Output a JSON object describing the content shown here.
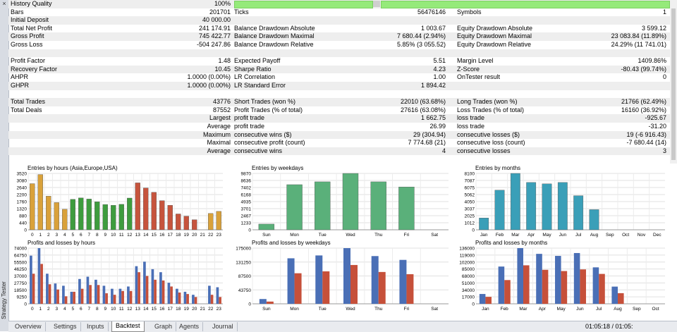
{
  "sidebar": {
    "title": "Strategy Tester",
    "close": "×"
  },
  "report": {
    "history_quality_label": "History Quality",
    "history_quality_value": "100%",
    "rows": [
      [
        "Bars",
        "201701",
        "Ticks",
        "56476146",
        "Symbols",
        "1"
      ],
      [
        "Initial Deposit",
        "40 000.00",
        "",
        "",
        "",
        ""
      ],
      [
        "Total Net Profit",
        "241 174.91",
        "Balance Drawdown Absolute",
        "1 003.67",
        "Equity Drawdown Absolute",
        "3 599.12"
      ],
      [
        "Gross Profit",
        "745 422.77",
        "Balance Drawdown Maximal",
        "7 680.44 (2.94%)",
        "Equity Drawdown Maximal",
        "23 083.84 (11.89%)"
      ],
      [
        "Gross Loss",
        "-504 247.86",
        "Balance Drawdown Relative",
        "5.85% (3 055.52)",
        "Equity Drawdown Relative",
        "24.29% (11 741.01)"
      ],
      [
        "",
        "",
        "",
        "",
        "",
        ""
      ],
      [
        "Profit Factor",
        "1.48",
        "Expected Payoff",
        "5.51",
        "Margin Level",
        "1409.86%"
      ],
      [
        "Recovery Factor",
        "10.45",
        "Sharpe Ratio",
        "4.23",
        "Z-Score",
        "-80.43 (99.74%)"
      ],
      [
        "AHPR",
        "1.0000 (0.00%)",
        "LR Correlation",
        "1.00",
        "OnTester result",
        "0"
      ],
      [
        "GHPR",
        "1.0000 (0.00%)",
        "LR Standard Error",
        "1 894.42",
        "",
        ""
      ],
      [
        "",
        "",
        "",
        "",
        "",
        ""
      ],
      [
        "Total Trades",
        "43776",
        "Short Trades (won %)",
        "22010 (63.68%)",
        "Long Trades (won %)",
        "21766 (62.49%)"
      ],
      [
        "Total Deals",
        "87552",
        "Profit Trades (% of total)",
        "27616 (63.08%)",
        "Loss Trades (% of total)",
        "16160 (36.92%)"
      ],
      [
        "",
        "Largest",
        "profit trade",
        "1 662.75",
        "loss trade",
        "-925.67"
      ],
      [
        "",
        "Average",
        "profit trade",
        "26.99",
        "loss trade",
        "-31.20"
      ],
      [
        "",
        "Maximum",
        "consecutive wins ($)",
        "29 (304.94)",
        "consecutive losses ($)",
        "19 (-6 916.43)"
      ],
      [
        "",
        "Maximal",
        "consecutive profit (count)",
        "7 774.68 (21)",
        "consecutive loss (count)",
        "-7 680.44 (14)"
      ],
      [
        "",
        "Average",
        "consecutive wins",
        "4",
        "consecutive losses",
        "3"
      ],
      [
        "",
        "",
        "",
        "",
        "",
        ""
      ]
    ]
  },
  "charts": {
    "entries_hours": {
      "title": "Entries by hours (Asia,Europe,USA)",
      "ylabels": [
        "3520",
        "3080",
        "2640",
        "2200",
        "1760",
        "1320",
        "880",
        "440",
        "0"
      ],
      "categories": [
        "0",
        "1",
        "2",
        "3",
        "4",
        "5",
        "6",
        "7",
        "8",
        "9",
        "10",
        "11",
        "12",
        "13",
        "14",
        "15",
        "16",
        "17",
        "18",
        "19",
        "20",
        "21",
        "22",
        "23"
      ],
      "values": [
        2880,
        3450,
        2100,
        1700,
        1280,
        1900,
        1990,
        1920,
        1750,
        1580,
        1530,
        1590,
        1980,
        2930,
        2610,
        2340,
        1820,
        1530,
        990,
        850,
        630,
        0,
        1020,
        1150
      ]
    },
    "entries_weekdays": {
      "title": "Entries by weekdays",
      "ylabels": [
        "9870",
        "8636",
        "7402",
        "6168",
        "4935",
        "3701",
        "2467",
        "1233",
        "0"
      ],
      "categories": [
        "Sun",
        "Mon",
        "Tue",
        "Wed",
        "Thu",
        "Fri",
        "Sat"
      ],
      "values": [
        1000,
        7900,
        8400,
        9870,
        8400,
        7500,
        0
      ]
    },
    "entries_months": {
      "title": "Entries by months",
      "ylabels": [
        "8100",
        "7087",
        "6075",
        "5062",
        "4050",
        "3037",
        "2025",
        "1012",
        "0"
      ],
      "categories": [
        "Jan",
        "Feb",
        "Mar",
        "Apr",
        "May",
        "Jun",
        "Jul",
        "Aug",
        "Sep",
        "Oct",
        "Nov",
        "Dec"
      ],
      "values": [
        1700,
        5700,
        8100,
        6800,
        6600,
        6800,
        4900,
        2900,
        0,
        0,
        0,
        0
      ]
    },
    "pl_hours": {
      "title": "Profits and losses by hours",
      "ylabels": [
        "74000",
        "64750",
        "55500",
        "46250",
        "37000",
        "27750",
        "18500",
        "9250",
        "0"
      ],
      "categories": [
        "0",
        "1",
        "2",
        "3",
        "4",
        "5",
        "6",
        "7",
        "8",
        "9",
        "10",
        "11",
        "12",
        "13",
        "14",
        "15",
        "16",
        "17",
        "18",
        "19",
        "20",
        "21",
        "22",
        "23"
      ],
      "profits": [
        64000,
        74000,
        40000,
        27000,
        24000,
        16000,
        33000,
        36000,
        32000,
        24000,
        20000,
        20000,
        23000,
        50000,
        56000,
        46000,
        42000,
        28000,
        20000,
        16000,
        12000,
        0,
        24000,
        22000
      ],
      "losses": [
        40000,
        53000,
        26000,
        19000,
        10000,
        16000,
        20000,
        25000,
        25000,
        14000,
        12000,
        17000,
        17000,
        42000,
        37000,
        32000,
        31000,
        23000,
        15000,
        13000,
        9000,
        0,
        12000,
        9000
      ]
    },
    "pl_weekdays": {
      "title": "Profits and losses by weekdays",
      "ylabels": [
        "175000",
        "131250",
        "87500",
        "43750",
        "0"
      ],
      "categories": [
        "Sun",
        "Mon",
        "Tue",
        "Wed",
        "Thu",
        "Fri",
        "Sat"
      ],
      "profits": [
        15000,
        143000,
        152000,
        175000,
        150000,
        138000,
        0
      ],
      "losses": [
        7000,
        96000,
        102000,
        122000,
        100000,
        93000,
        0
      ]
    },
    "pl_months": {
      "title": "Profits and losses by months",
      "ylabels": [
        "136000",
        "119000",
        "102000",
        "85000",
        "68000",
        "51000",
        "34000",
        "17000",
        "0"
      ],
      "categories": [
        "Jan",
        "Feb",
        "Mar",
        "Apr",
        "May",
        "Jun",
        "Jul",
        "Aug",
        "Sep",
        "Oct"
      ],
      "profits": [
        24000,
        91000,
        136000,
        122000,
        117000,
        124000,
        89000,
        42000,
        0,
        0
      ],
      "losses": [
        17000,
        58000,
        94000,
        83000,
        80000,
        84000,
        73000,
        26000,
        0,
        0
      ]
    }
  },
  "colors": {
    "asia": "#d9a13a",
    "europe": "#3e9c3e",
    "usa": "#c6543d",
    "weekday": "#5ab07a",
    "month": "#3a9fb8",
    "profit": "#4a6fb6",
    "loss": "#c6503a"
  },
  "tabs": [
    "Overview",
    "Settings",
    "Inputs",
    "Backtest",
    "Graph",
    "Agents",
    "Journal"
  ],
  "active_tab": "Backtest",
  "status_time": "01:05:18 / 01:05:"
}
